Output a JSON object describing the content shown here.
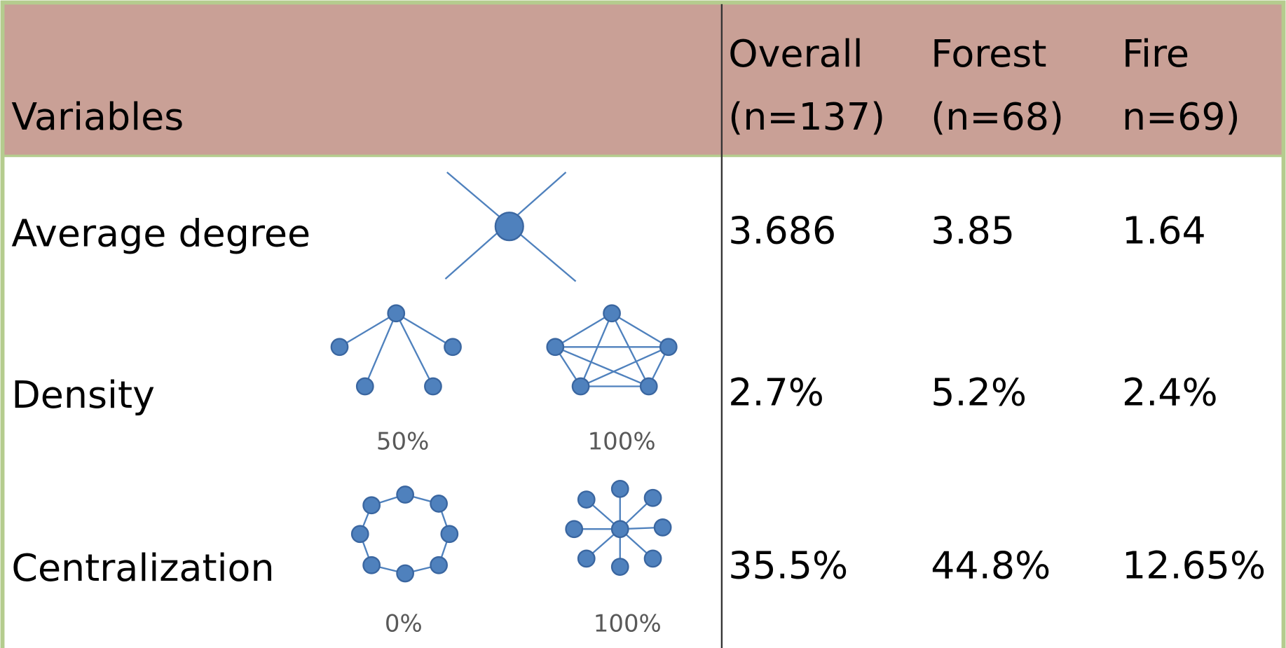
{
  "table": {
    "header": [
      [
        "Variables"
      ],
      [
        "Overall",
        "(n=137)"
      ],
      [
        "Forest",
        "(n=68)"
      ],
      [
        "Fire",
        "n=69)"
      ]
    ],
    "rows": [
      {
        "label": "Average degree",
        "captions": [],
        "values": [
          "3.686",
          "3.85",
          "1.64"
        ]
      },
      {
        "label": "Density",
        "captions": [
          "50%",
          "100%"
        ],
        "values": [
          "2.7%",
          "5.2%",
          "2.4%"
        ]
      },
      {
        "label": "Centralization",
        "captions": [
          "0%",
          "100%"
        ],
        "values": [
          "35.5%",
          "44.8%",
          "12.65%"
        ]
      }
    ]
  }
}
